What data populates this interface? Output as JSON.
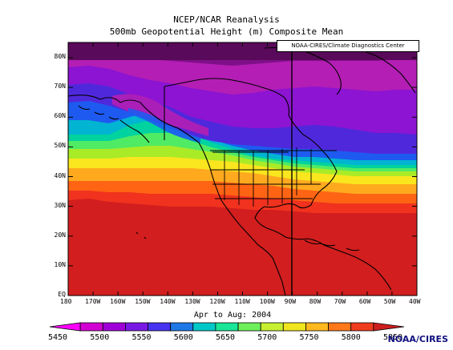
{
  "title": {
    "line1": "NCEP/NCAR Reanalysis",
    "line2": "500mb Geopotential Height (m) Composite Mean"
  },
  "map_credit": "NOAA-CIRES/Climate Diagnostics Center",
  "period": "Apr to Aug: 2004",
  "credit": "NOAA/CIRES",
  "lat_labels": [
    "80N",
    "70N",
    "60N",
    "50N",
    "40N",
    "30N",
    "20N",
    "10N",
    "EQ"
  ],
  "lon_labels": [
    "180",
    "170W",
    "160W",
    "150W",
    "140W",
    "130W",
    "120W",
    "110W",
    "100W",
    "90W",
    "80W",
    "70W",
    "60W",
    "50W",
    "40W"
  ],
  "colorbar": {
    "ticks": [
      "5450",
      "5500",
      "5550",
      "5600",
      "5650",
      "5700",
      "5750",
      "5800",
      "5850"
    ],
    "colors": [
      "#ff00ff",
      "#d200d2",
      "#a000d8",
      "#7a19e6",
      "#4634f0",
      "#1e78e6",
      "#00c8c8",
      "#19e696",
      "#6ef05a",
      "#c8f032",
      "#f0e61e",
      "#ffb91e",
      "#ff7819",
      "#f03c1e",
      "#cd1e1e"
    ]
  },
  "bands": {
    "lows": "#5a0a5a",
    "colors": [
      "#5a0a5a",
      "#7f0f88",
      "#b41eb4",
      "#8c14d2",
      "#5028dc",
      "#1e5af0",
      "#00b4d2",
      "#00d2a0",
      "#50eb64",
      "#aaeb28",
      "#fae61e",
      "#ffaa1e",
      "#ff6414",
      "#f0321e",
      "#d21e1e"
    ]
  }
}
